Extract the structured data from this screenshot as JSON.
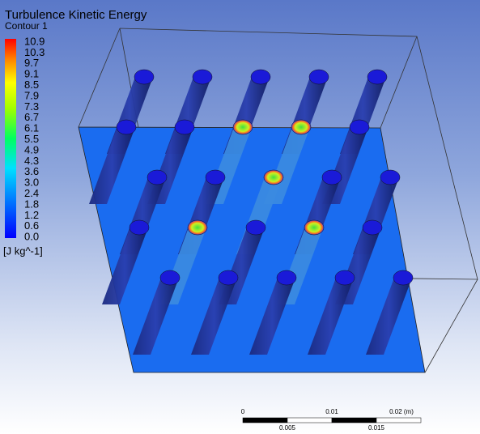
{
  "header": {
    "title": "Turbulence Kinetic Energy",
    "subtitle": "Contour 1"
  },
  "legend": {
    "labels": [
      "10.9",
      "10.3",
      "9.7",
      "9.1",
      "8.5",
      "7.9",
      "7.3",
      "6.7",
      "6.1",
      "5.5",
      "4.9",
      "4.3",
      "3.6",
      "3.0",
      "2.4",
      "1.8",
      "1.2",
      "0.6",
      "0.0"
    ],
    "unit": "[J kg^-1]"
  },
  "scale_bar": {
    "top_labels": [
      "0",
      "0.01",
      "0.02 (m)"
    ],
    "bottom_labels": [
      "0.005",
      "0.015"
    ]
  }
}
